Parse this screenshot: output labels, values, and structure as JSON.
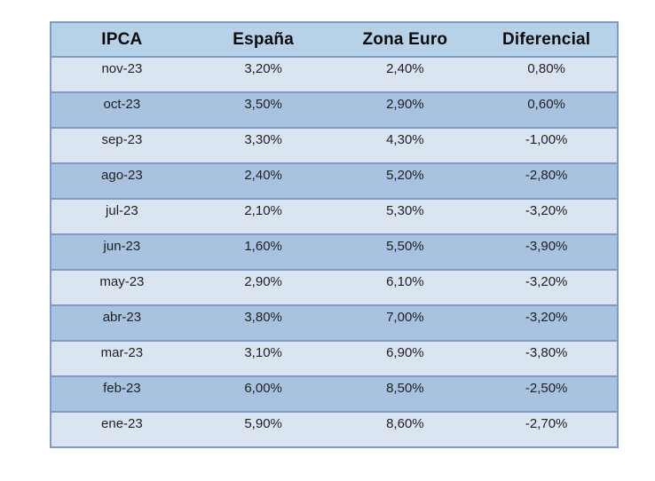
{
  "table": {
    "headers": [
      "IPCA",
      "España",
      "Zona Euro",
      "Diferencial"
    ],
    "rows": [
      [
        "nov-23",
        "3,20%",
        "2,40%",
        "0,80%"
      ],
      [
        "oct-23",
        "3,50%",
        "2,90%",
        "0,60%"
      ],
      [
        "sep-23",
        "3,30%",
        "4,30%",
        "-1,00%"
      ],
      [
        "ago-23",
        "2,40%",
        "5,20%",
        "-2,80%"
      ],
      [
        "jul-23",
        "2,10%",
        "5,30%",
        "-3,20%"
      ],
      [
        "jun-23",
        "1,60%",
        "5,50%",
        "-3,90%"
      ],
      [
        "may-23",
        "2,90%",
        "6,10%",
        "-3,20%"
      ],
      [
        "abr-23",
        "3,80%",
        "7,00%",
        "-3,20%"
      ],
      [
        "mar-23",
        "3,10%",
        "6,90%",
        "-3,80%"
      ],
      [
        "feb-23",
        "6,00%",
        "8,50%",
        "-2,50%"
      ],
      [
        "ene-23",
        "5,90%",
        "8,60%",
        "-2,70%"
      ]
    ],
    "colors": {
      "header_bg": "#b7d1e8",
      "row_light": "#dbe5f2",
      "row_dark": "#a8c2e0",
      "border": "#7e9bc5"
    }
  },
  "chart_data": {
    "type": "table",
    "title": "IPCA",
    "columns": [
      "IPCA",
      "España",
      "Zona Euro",
      "Diferencial"
    ],
    "categories": [
      "nov-23",
      "oct-23",
      "sep-23",
      "ago-23",
      "jul-23",
      "jun-23",
      "may-23",
      "abr-23",
      "mar-23",
      "feb-23",
      "ene-23"
    ],
    "series": [
      {
        "name": "España",
        "values": [
          3.2,
          3.5,
          3.3,
          2.4,
          2.1,
          1.6,
          2.9,
          3.8,
          3.1,
          6.0,
          5.9
        ]
      },
      {
        "name": "Zona Euro",
        "values": [
          2.4,
          2.9,
          4.3,
          5.2,
          5.3,
          5.5,
          6.1,
          7.0,
          6.9,
          8.5,
          8.6
        ]
      },
      {
        "name": "Diferencial",
        "values": [
          0.8,
          0.6,
          -1.0,
          -2.8,
          -3.2,
          -3.9,
          -3.2,
          -3.2,
          -3.8,
          -2.5,
          -2.7
        ]
      }
    ],
    "unit": "%"
  }
}
